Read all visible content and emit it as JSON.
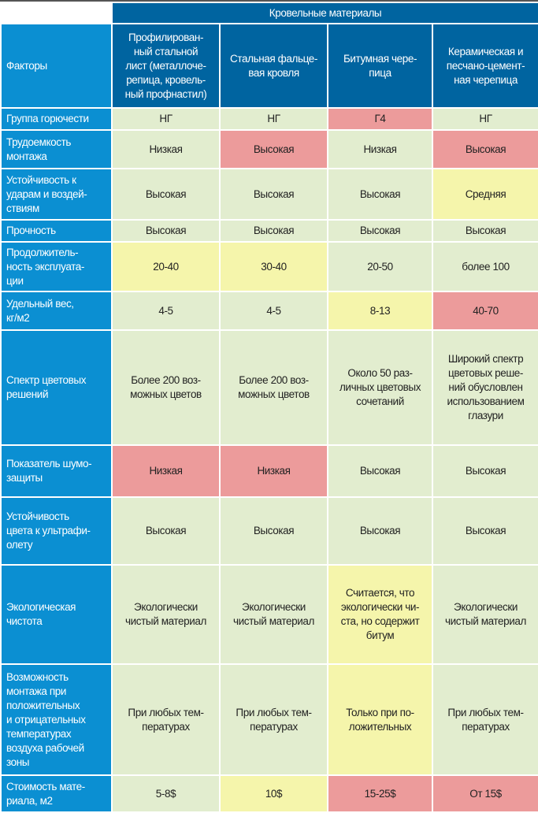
{
  "header": {
    "group_title": "Кровельные материалы",
    "factors_label": "Факторы",
    "materials": [
      "Профилирован-\nный стальной\nлист (металлоче-\nрепица, кровель-\nный профнастил)",
      "Стальная фальце-\nвая кровля",
      "Битумная чере-\nпица",
      "Керамическая и\nпесчано-цемент-\nная черепица"
    ]
  },
  "colors": {
    "header": "#0064a0",
    "factor": "#0b8fd2",
    "good": "#e2edcf",
    "bad": "#ec9b9b",
    "medium": "#f5f5ab"
  },
  "rows": [
    {
      "factor": "Группа горючести",
      "cells": [
        {
          "v": "НГ",
          "s": "g"
        },
        {
          "v": "НГ",
          "s": "g"
        },
        {
          "v": "Г4",
          "s": "r"
        },
        {
          "v": "НГ",
          "s": "g"
        }
      ]
    },
    {
      "factor": "Трудоемкость\nмонтажа",
      "cells": [
        {
          "v": "Низкая",
          "s": "g"
        },
        {
          "v": "Высокая",
          "s": "r"
        },
        {
          "v": "Низкая",
          "s": "g"
        },
        {
          "v": "Высокая",
          "s": "r"
        }
      ]
    },
    {
      "factor": "Устойчивость к\nударам и воздей-\nствиям",
      "cells": [
        {
          "v": "Высокая",
          "s": "g"
        },
        {
          "v": "Высокая",
          "s": "g"
        },
        {
          "v": "Высокая",
          "s": "g"
        },
        {
          "v": "Средняя",
          "s": "y"
        }
      ]
    },
    {
      "factor": "Прочность",
      "cells": [
        {
          "v": "Высокая",
          "s": "g"
        },
        {
          "v": "Высокая",
          "s": "g"
        },
        {
          "v": "Высокая",
          "s": "g"
        },
        {
          "v": "Высокая",
          "s": "g"
        }
      ]
    },
    {
      "factor": "Продолжитель-\nность эксплуата-\nции",
      "cells": [
        {
          "v": "20-40",
          "s": "y"
        },
        {
          "v": "30-40",
          "s": "y"
        },
        {
          "v": "20-50",
          "s": "g"
        },
        {
          "v": "более 100",
          "s": "g"
        }
      ]
    },
    {
      "factor": "Удельный вес,\nкг/м2",
      "cells": [
        {
          "v": "4-5",
          "s": "g"
        },
        {
          "v": "4-5",
          "s": "g"
        },
        {
          "v": "8-13",
          "s": "y"
        },
        {
          "v": "40-70",
          "s": "r"
        }
      ]
    },
    {
      "factor": "Спектр цветовых\nрешений",
      "cells": [
        {
          "v": "Более 200 воз-\nможных цветов",
          "s": "g"
        },
        {
          "v": "Более 200 воз-\nможных цветов",
          "s": "g"
        },
        {
          "v": "Около 50 раз-\nличных цветовых\nсочетаний",
          "s": "g"
        },
        {
          "v": "Широкий спектр\nцветовых реше-\nний обусловлен\nиспользованием\nглазури",
          "s": "g"
        }
      ]
    },
    {
      "factor": "Показатель шумо-\nзащиты",
      "cells": [
        {
          "v": "Низкая",
          "s": "r"
        },
        {
          "v": "Низкая",
          "s": "r"
        },
        {
          "v": "Высокая",
          "s": "g"
        },
        {
          "v": "Высокая",
          "s": "g"
        }
      ]
    },
    {
      "factor": "Устойчивость\nцвета к ультрафи-\nолету",
      "cells": [
        {
          "v": "Высокая",
          "s": "g"
        },
        {
          "v": "Высокая",
          "s": "g"
        },
        {
          "v": "Высокая",
          "s": "g"
        },
        {
          "v": "Высокая",
          "s": "g"
        }
      ]
    },
    {
      "factor": "Экологическая\nчистота",
      "cells": [
        {
          "v": "Экологически\nчистый материал",
          "s": "g"
        },
        {
          "v": "Экологически\nчистый материал",
          "s": "g"
        },
        {
          "v": "Считается, что\nэкологически чи-\nста, но содержит\nбитум",
          "s": "y"
        },
        {
          "v": "Экологически\nчистый материал",
          "s": "g"
        }
      ]
    },
    {
      "factor": "Возможность\nмонтажа при\nположительных\nи отрицательных\nтемпературах\nвоздуха рабочей\nзоны",
      "cells": [
        {
          "v": "При любых тем-\nпературах",
          "s": "g"
        },
        {
          "v": "При любых тем-\nпературах",
          "s": "g"
        },
        {
          "v": "Только при по-\nложительных",
          "s": "y"
        },
        {
          "v": "При любых тем-\nпературах",
          "s": "g"
        }
      ]
    },
    {
      "factor": "Стоимость мате-\nриала, м2",
      "cells": [
        {
          "v": "5-8$",
          "s": "g"
        },
        {
          "v": "10$",
          "s": "y"
        },
        {
          "v": "15-25$",
          "s": "r"
        },
        {
          "v": "От 15$",
          "s": "r"
        }
      ]
    }
  ]
}
